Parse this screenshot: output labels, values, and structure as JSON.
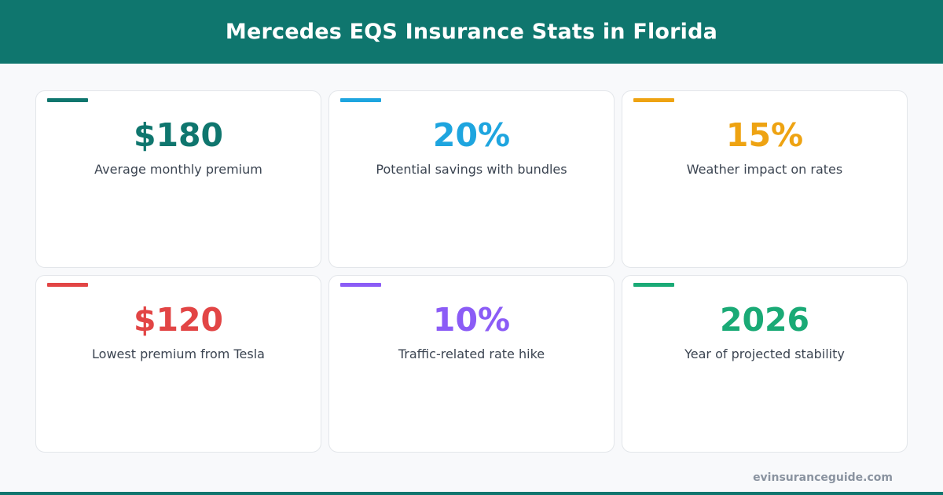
{
  "header": {
    "title": "Mercedes EQS Insurance Stats in Florida"
  },
  "cards": [
    {
      "value": "$180",
      "label": "Average monthly premium",
      "color": "#0f766e"
    },
    {
      "value": "20%",
      "label": "Potential savings with bundles",
      "color": "#1ea5df"
    },
    {
      "value": "15%",
      "label": "Weather impact on rates",
      "color": "#eea312"
    },
    {
      "value": "$120",
      "label": "Lowest premium from Tesla",
      "color": "#e24545"
    },
    {
      "value": "10%",
      "label": "Traffic-related rate hike",
      "color": "#8b5cf6"
    },
    {
      "value": "2026",
      "label": "Year of projected stability",
      "color": "#1aaa76"
    }
  ],
  "footer": {
    "site": "evinsuranceguide.com"
  },
  "colors": {
    "header_bg": "#0f766e",
    "page_bg": "#f8f9fb"
  }
}
